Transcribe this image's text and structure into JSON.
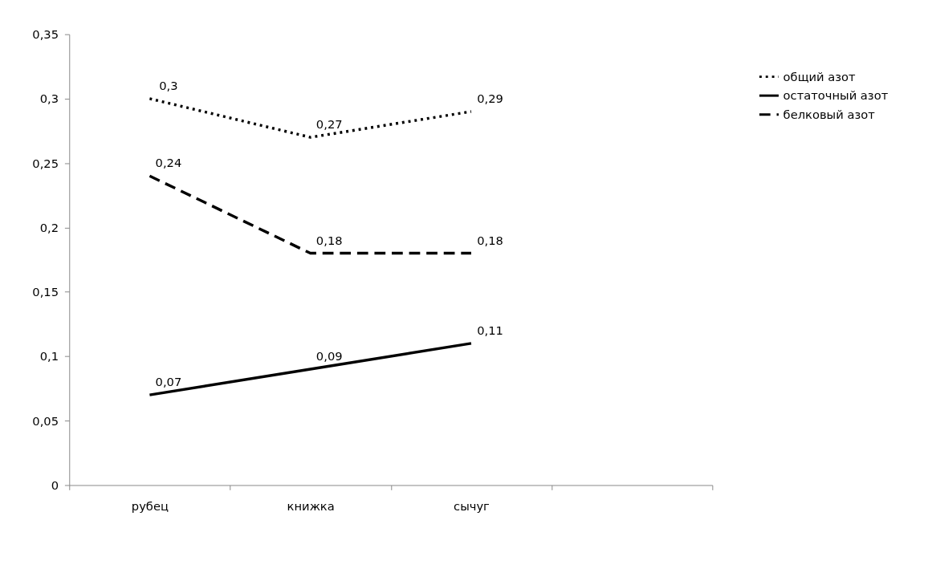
{
  "chart_data": {
    "type": "line",
    "categories": [
      "рубец",
      "книжка",
      "сычуг",
      null
    ],
    "series": [
      {
        "name": "общий азот",
        "color": "#000000",
        "line_style": "dotted",
        "values": [
          0.3,
          0.27,
          0.29,
          null
        ],
        "value_labels": [
          "0,3",
          "0,27",
          "0,29",
          null
        ]
      },
      {
        "name": "остаточный азот",
        "color": "#000000",
        "line_style": "solid",
        "values": [
          0.07,
          0.09,
          0.11,
          null
        ],
        "value_labels": [
          "0,07",
          "0,09",
          "0,11",
          null
        ]
      },
      {
        "name": "белковый азот",
        "color": "#000000",
        "line_style": "dashed",
        "values": [
          0.24,
          0.18,
          0.18,
          null
        ],
        "value_labels": [
          "0,24",
          "0,18",
          "0,18",
          null
        ]
      }
    ],
    "ylim": [
      0,
      0.35
    ],
    "yticks": [
      {
        "value": 0,
        "label": "0"
      },
      {
        "value": 0.05,
        "label": "0,05"
      },
      {
        "value": 0.1,
        "label": "0,1"
      },
      {
        "value": 0.15,
        "label": "0,15"
      },
      {
        "value": 0.2,
        "label": "0,2"
      },
      {
        "value": 0.25,
        "label": "0,25"
      },
      {
        "value": 0.3,
        "label": "0,3"
      },
      {
        "value": 0.35,
        "label": "0,35"
      }
    ],
    "grid": false,
    "legend": "right",
    "marker": "none"
  }
}
